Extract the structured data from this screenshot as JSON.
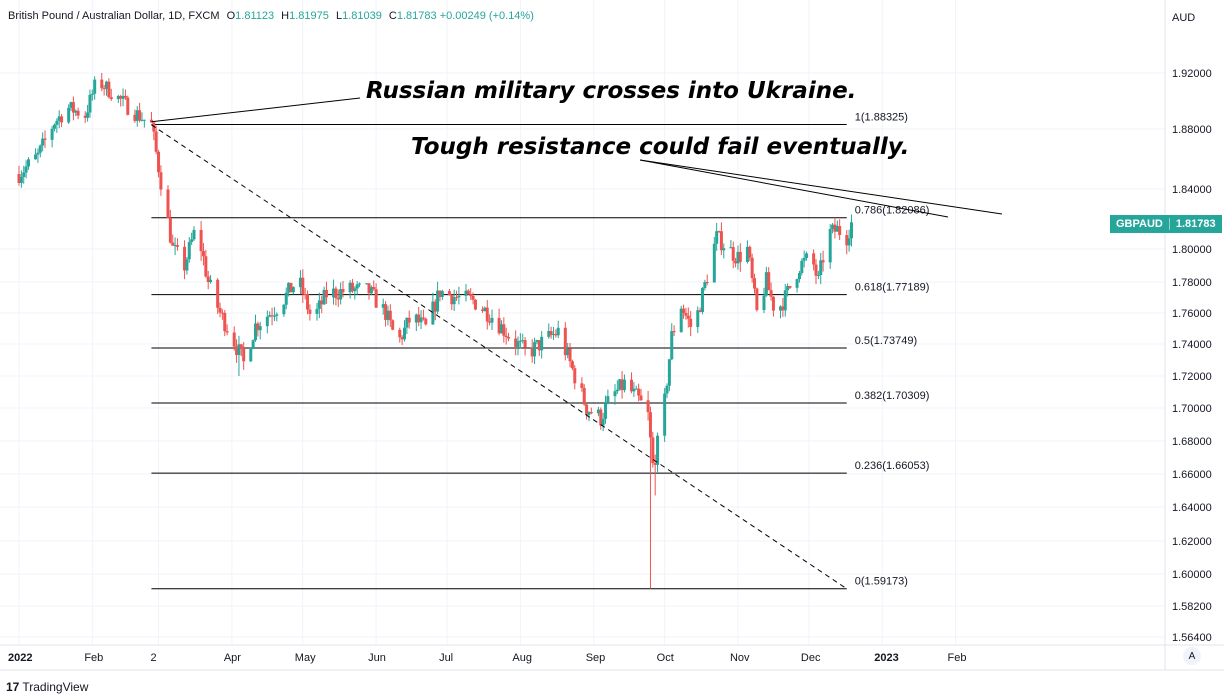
{
  "header": {
    "title": "British Pound / Australian Dollar, 1D, FXCM",
    "ohlc": [
      {
        "label": "O",
        "value": "1.81123"
      },
      {
        "label": "H",
        "value": "1.81975"
      },
      {
        "label": "L",
        "value": "1.81039"
      },
      {
        "label": "C",
        "value": "1.81783"
      }
    ],
    "change": "+0.00249 (+0.14%)"
  },
  "currency_label": "AUD",
  "price_tag": {
    "symbol": "GBPAUD",
    "value": "1.81783",
    "color": "#26a69a"
  },
  "annotations": {
    "russia": "Russian military crosses into Ukraine.",
    "resistance": "Tough resistance could fail eventually."
  },
  "footer": {
    "brand": "TradingView",
    "mark": "17"
  },
  "auto_scale_label": "A",
  "colors": {
    "up": "#26a69a",
    "down": "#ef5350",
    "grid": "#f0f3fa",
    "axis_text": "#131722"
  },
  "chart_data": {
    "type": "candlestick",
    "title": "British Pound / Australian Dollar, 1D, FXCM",
    "ylim": [
      1.555,
      1.935
    ],
    "y_ticks": [
      "1.92000",
      "1.88000",
      "1.84000",
      "1.80000",
      "1.78000",
      "1.76000",
      "1.74000",
      "1.72000",
      "1.70000",
      "1.68000",
      "1.66000",
      "1.64000",
      "1.62000",
      "1.60000",
      "1.58200",
      "1.56400"
    ],
    "x_ticks": [
      {
        "label": "2022",
        "day": 0
      },
      {
        "label": "Feb",
        "day": 31
      },
      {
        "label": "2",
        "day": 59
      },
      {
        "label": "Apr",
        "day": 90
      },
      {
        "label": "May",
        "day": 120
      },
      {
        "label": "Jun",
        "day": 151
      },
      {
        "label": "Jul",
        "day": 181
      },
      {
        "label": "Aug",
        "day": 212
      },
      {
        "label": "Sep",
        "day": 243
      },
      {
        "label": "Oct",
        "day": 273
      },
      {
        "label": "Nov",
        "day": 304
      },
      {
        "label": "Dec",
        "day": 334
      },
      {
        "label": "2023",
        "day": 365
      },
      {
        "label": "Feb",
        "day": 396
      }
    ],
    "fib_levels": [
      {
        "ratio": "1",
        "value": 1.88325,
        "label": "1(1.88325)"
      },
      {
        "ratio": "0.786",
        "value": 1.82086,
        "label": "0.786(1.82086)"
      },
      {
        "ratio": "0.618",
        "value": 1.77189,
        "label": "0.618(1.77189)"
      },
      {
        "ratio": "0.5",
        "value": 1.73749,
        "label": "0.5(1.73749)"
      },
      {
        "ratio": "0.382",
        "value": 1.70309,
        "label": "0.382(1.70309)"
      },
      {
        "ratio": "0.236",
        "value": 1.66053,
        "label": "0.236(1.66053)"
      },
      {
        "ratio": "0",
        "value": 1.59173,
        "label": "0(1.59173)"
      }
    ],
    "fib_span_days": [
      56,
      350
    ],
    "trendline": {
      "from": {
        "day": 56,
        "price": 1.883
      },
      "to": {
        "day": 350,
        "price": 1.5917
      }
    },
    "last_close": 1.81783,
    "path_anchors": [
      [
        0,
        1.85
      ],
      [
        8,
        1.862
      ],
      [
        15,
        1.885
      ],
      [
        21,
        1.895
      ],
      [
        28,
        1.89
      ],
      [
        33,
        1.915
      ],
      [
        40,
        1.905
      ],
      [
        48,
        1.893
      ],
      [
        56,
        1.883
      ],
      [
        60,
        1.845
      ],
      [
        65,
        1.8
      ],
      [
        70,
        1.79
      ],
      [
        75,
        1.815
      ],
      [
        80,
        1.78
      ],
      [
        85,
        1.76
      ],
      [
        90,
        1.745
      ],
      [
        95,
        1.728
      ],
      [
        100,
        1.752
      ],
      [
        110,
        1.765
      ],
      [
        118,
        1.782
      ],
      [
        124,
        1.755
      ],
      [
        130,
        1.772
      ],
      [
        140,
        1.775
      ],
      [
        148,
        1.774
      ],
      [
        155,
        1.76
      ],
      [
        160,
        1.74
      ],
      [
        166,
        1.758
      ],
      [
        172,
        1.75
      ],
      [
        178,
        1.774
      ],
      [
        185,
        1.77
      ],
      [
        192,
        1.768
      ],
      [
        200,
        1.758
      ],
      [
        208,
        1.744
      ],
      [
        215,
        1.734
      ],
      [
        222,
        1.742
      ],
      [
        228,
        1.748
      ],
      [
        234,
        1.724
      ],
      [
        240,
        1.7
      ],
      [
        246,
        1.694
      ],
      [
        250,
        1.706
      ],
      [
        256,
        1.715
      ],
      [
        262,
        1.705
      ],
      [
        266,
        1.695
      ],
      [
        268,
        1.665
      ],
      [
        272,
        1.69
      ],
      [
        276,
        1.745
      ],
      [
        280,
        1.765
      ],
      [
        285,
        1.748
      ],
      [
        290,
        1.778
      ],
      [
        295,
        1.808
      ],
      [
        300,
        1.8
      ],
      [
        304,
        1.795
      ],
      [
        308,
        1.8
      ],
      [
        312,
        1.76
      ],
      [
        316,
        1.78
      ],
      [
        320,
        1.76
      ],
      [
        324,
        1.77
      ],
      [
        330,
        1.79
      ],
      [
        335,
        1.795
      ],
      [
        338,
        1.78
      ],
      [
        342,
        1.81
      ],
      [
        346,
        1.813
      ],
      [
        350,
        1.808
      ],
      [
        352,
        1.818
      ]
    ],
    "spikes": [
      {
        "day": 267,
        "low": 1.5917
      },
      {
        "day": 269,
        "low": 1.647
      },
      {
        "day": 35,
        "high": 1.92
      },
      {
        "day": 93,
        "low": 1.72
      },
      {
        "day": 125,
        "low": 1.72
      }
    ]
  }
}
